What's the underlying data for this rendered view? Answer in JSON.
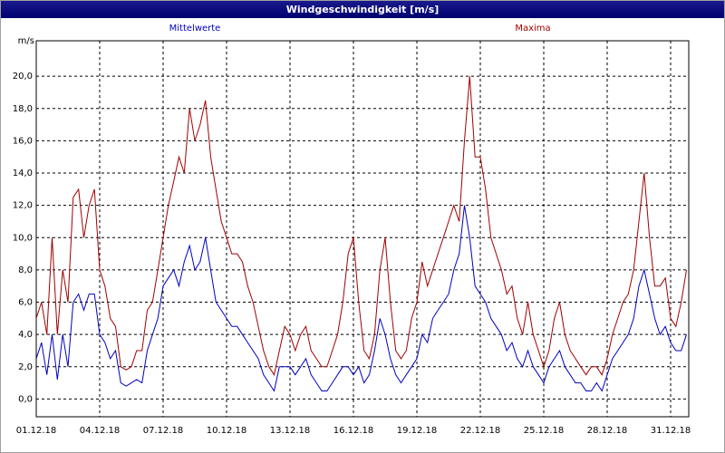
{
  "chart_data": {
    "type": "line",
    "title": "Windgeschwindigkeit [m/s]",
    "y_unit": "m/s",
    "categories": [
      "01.12.18",
      null,
      null,
      null,
      null,
      null,
      null,
      null,
      null,
      null,
      null,
      null,
      "04.12.18",
      null,
      null,
      null,
      null,
      null,
      null,
      null,
      null,
      null,
      null,
      null,
      "07.12.18",
      null,
      null,
      null,
      null,
      null,
      null,
      null,
      null,
      null,
      null,
      null,
      "10.12.18",
      null,
      null,
      null,
      null,
      null,
      null,
      null,
      null,
      null,
      null,
      null,
      "13.12.18",
      null,
      null,
      null,
      null,
      null,
      null,
      null,
      null,
      null,
      null,
      null,
      "16.12.18",
      null,
      null,
      null,
      null,
      null,
      null,
      null,
      null,
      null,
      null,
      null,
      "19.12.18",
      null,
      null,
      null,
      null,
      null,
      null,
      null,
      null,
      null,
      null,
      null,
      "22.12.18",
      null,
      null,
      null,
      null,
      null,
      null,
      null,
      null,
      null,
      null,
      null,
      "25.12.18",
      null,
      null,
      null,
      null,
      null,
      null,
      null,
      null,
      null,
      null,
      null,
      "28.12.18",
      null,
      null,
      null,
      null,
      null,
      null,
      null,
      null,
      null,
      null,
      null,
      "31.12.18",
      null,
      null,
      null
    ],
    "series": [
      {
        "name": "Mittelwerte",
        "color": "#0000c0",
        "values": [
          2.5,
          3.5,
          1.5,
          4,
          1.2,
          4,
          2,
          6,
          6.5,
          5.5,
          6.5,
          6.5,
          4,
          3.5,
          2.5,
          3,
          1,
          0.8,
          1,
          1.2,
          1,
          3,
          4,
          5,
          7,
          7.5,
          8,
          7,
          8.5,
          9.5,
          8,
          8.5,
          10,
          8,
          6,
          5.5,
          5,
          4.5,
          4.5,
          4,
          3.5,
          3,
          2.5,
          1.5,
          1,
          0.5,
          2,
          2,
          2,
          1.5,
          2,
          2.5,
          1.5,
          1,
          0.5,
          0.5,
          1,
          1.5,
          2,
          2,
          1.5,
          2,
          1,
          1.5,
          3,
          5,
          4,
          2.5,
          1.5,
          1,
          1.5,
          2,
          2.5,
          4,
          3.5,
          5,
          5.5,
          6,
          6.5,
          8,
          9,
          12,
          10,
          7,
          6.5,
          6,
          5,
          4.5,
          4,
          3,
          3.5,
          2.5,
          2,
          3,
          2,
          1.5,
          1,
          2,
          2.5,
          3,
          2,
          1.5,
          1,
          1,
          0.5,
          0.5,
          1,
          0.5,
          1.5,
          2.5,
          3,
          3.5,
          4,
          5,
          7,
          8,
          6.5,
          5,
          4,
          4.5,
          3.5,
          3,
          3,
          4
        ]
      },
      {
        "name": "Maxima",
        "color": "#a00000",
        "values": [
          5,
          6,
          4,
          10,
          4,
          8,
          6,
          12.5,
          13,
          10,
          12,
          13,
          8,
          7,
          5,
          4.5,
          2,
          1.8,
          2,
          3,
          3,
          5.5,
          6,
          8,
          10,
          12,
          13.5,
          15,
          14,
          18,
          16,
          17,
          18.5,
          15,
          13,
          11,
          10,
          9,
          9,
          8.5,
          7,
          6,
          4.5,
          3,
          2,
          1.5,
          3,
          4.5,
          4,
          3,
          4,
          4.5,
          3,
          2.5,
          2,
          2,
          3,
          4,
          6,
          9,
          10,
          6,
          3,
          2.5,
          4,
          8,
          10,
          6,
          3,
          2.5,
          3,
          5,
          6,
          8.5,
          7,
          8,
          9,
          10,
          11,
          12,
          11,
          16,
          20,
          15,
          15,
          13,
          10,
          9,
          8,
          6.5,
          7,
          5,
          4,
          6,
          4,
          3,
          2,
          3,
          5,
          6,
          4,
          3,
          2.5,
          2,
          1.5,
          2,
          2,
          1.5,
          2.5,
          4,
          5,
          6,
          6.5,
          8,
          11,
          14,
          10,
          7,
          7,
          7.5,
          5,
          4.5,
          6,
          8
        ]
      }
    ],
    "ylim": [
      -1.1,
      22.2
    ],
    "yticks": [
      {
        "value": 0,
        "label": "0,0"
      },
      {
        "value": 2,
        "label": "2,0"
      },
      {
        "value": 4,
        "label": "4,0"
      },
      {
        "value": 6,
        "label": "6,0"
      },
      {
        "value": 8,
        "label": "8,0"
      },
      {
        "value": 10,
        "label": "10,0"
      },
      {
        "value": 12,
        "label": "12,0"
      },
      {
        "value": 14,
        "label": "14,0"
      },
      {
        "value": 16,
        "label": "16,0"
      },
      {
        "value": 18,
        "label": "18,0"
      },
      {
        "value": 20,
        "label": "20,0"
      }
    ],
    "grid": true
  }
}
